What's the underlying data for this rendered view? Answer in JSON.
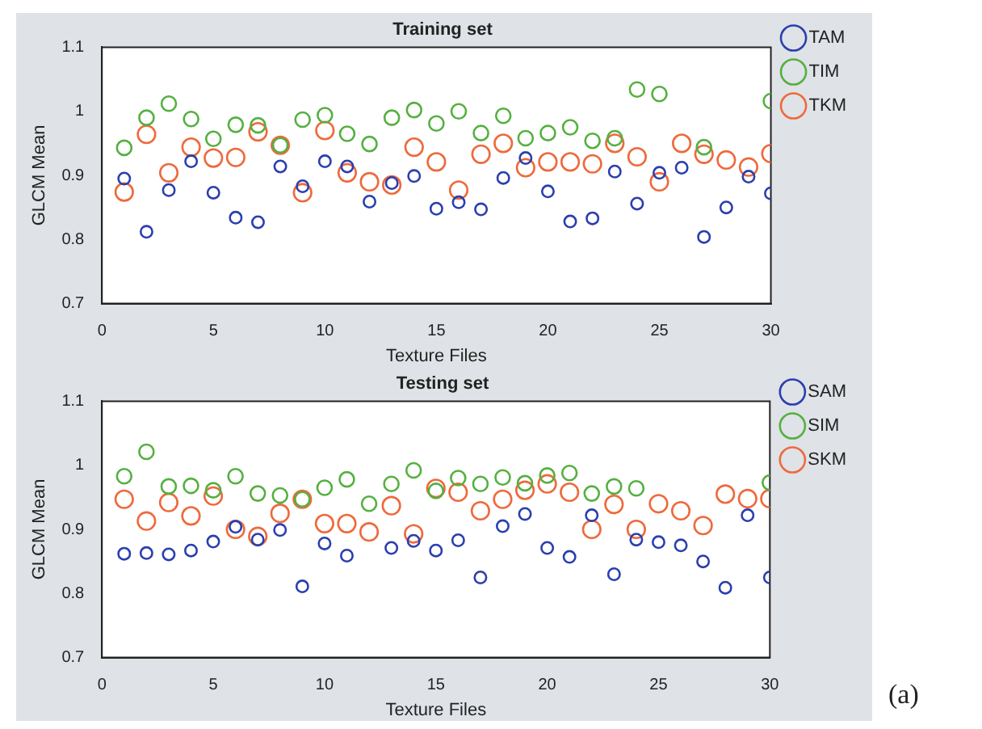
{
  "chart_data": [
    {
      "type": "scatter",
      "title": "Training set",
      "xlabel": "Texture Files",
      "ylabel": "GLCM Mean",
      "xlim": [
        0,
        30
      ],
      "ylim": [
        0.7,
        1.1
      ],
      "xticks": [
        0,
        5,
        10,
        15,
        20,
        25,
        30
      ],
      "yticks": [
        0.7,
        0.8,
        0.9,
        1,
        1.1
      ],
      "marker": "circle",
      "legend": "top right",
      "grid": false,
      "x": [
        1,
        2,
        3,
        4,
        5,
        6,
        7,
        8,
        9,
        10,
        11,
        12,
        13,
        14,
        15,
        16,
        17,
        18,
        19,
        20,
        21,
        22,
        23,
        24,
        25,
        26,
        27,
        28,
        29,
        30
      ],
      "series": [
        {
          "name": "TAM",
          "color": "#2b3fae",
          "values": [
            0.895,
            0.812,
            0.877,
            0.922,
            0.873,
            0.834,
            0.827,
            0.914,
            0.883,
            0.922,
            0.914,
            0.859,
            0.888,
            0.899,
            0.848,
            0.858,
            0.847,
            0.896,
            0.927,
            0.875,
            0.828,
            0.833,
            0.906,
            0.856,
            0.904,
            0.912,
            0.804,
            0.85,
            0.898,
            0.872
          ]
        },
        {
          "name": "TIM",
          "color": "#55b040",
          "values": [
            0.943,
            0.99,
            1.012,
            0.988,
            0.957,
            0.979,
            0.978,
            0.947,
            0.987,
            0.994,
            0.965,
            0.949,
            0.99,
            1.002,
            0.981,
            1.0,
            0.966,
            0.993,
            0.958,
            0.966,
            0.975,
            0.954,
            0.958,
            1.034,
            1.027,
            null,
            0.944,
            null,
            null,
            1.016
          ]
        },
        {
          "name": "TKM",
          "color": "#ee6a3c",
          "values": [
            0.874,
            0.964,
            0.904,
            0.944,
            0.927,
            0.928,
            0.968,
            0.947,
            0.873,
            0.97,
            0.904,
            0.89,
            0.885,
            0.944,
            0.921,
            0.877,
            0.933,
            0.95,
            0.912,
            0.921,
            0.921,
            0.918,
            0.95,
            0.929,
            0.89,
            0.95,
            0.933,
            0.924,
            0.913,
            0.934
          ]
        }
      ]
    },
    {
      "type": "scatter",
      "title": "Testing set",
      "xlabel": "Texture Files",
      "ylabel": "GLCM Mean",
      "xlim": [
        0,
        30
      ],
      "ylim": [
        0.7,
        1.1
      ],
      "xticks": [
        0,
        5,
        10,
        15,
        20,
        25,
        30
      ],
      "yticks": [
        0.7,
        0.8,
        0.9,
        1,
        1.1
      ],
      "marker": "circle",
      "legend": "top right",
      "grid": false,
      "annotations": [
        "(a)"
      ],
      "x": [
        1,
        2,
        3,
        4,
        5,
        6,
        7,
        8,
        9,
        10,
        11,
        12,
        13,
        14,
        15,
        16,
        17,
        18,
        19,
        20,
        21,
        22,
        23,
        24,
        25,
        26,
        27,
        28,
        29,
        30
      ],
      "series": [
        {
          "name": "SAM",
          "color": "#2b3fae",
          "values": [
            0.862,
            0.863,
            0.861,
            0.867,
            0.881,
            0.904,
            0.884,
            0.899,
            0.811,
            0.878,
            0.859,
            null,
            0.871,
            0.882,
            0.867,
            0.883,
            0.825,
            0.905,
            0.924,
            0.871,
            0.857,
            0.922,
            0.83,
            0.884,
            0.88,
            0.875,
            0.85,
            0.809,
            0.922,
            0.825
          ]
        },
        {
          "name": "SIM",
          "color": "#55b040",
          "values": [
            0.983,
            1.021,
            0.967,
            0.968,
            0.961,
            0.983,
            0.956,
            0.953,
            0.947,
            0.965,
            0.978,
            0.94,
            0.971,
            0.992,
            0.96,
            0.98,
            0.971,
            0.981,
            0.972,
            0.984,
            0.988,
            0.956,
            0.967,
            0.964,
            null,
            null,
            null,
            null,
            null,
            0.973
          ]
        },
        {
          "name": "SKM",
          "color": "#ee6a3c",
          "values": [
            0.947,
            0.913,
            0.942,
            0.921,
            0.952,
            0.9,
            0.889,
            0.925,
            0.947,
            0.909,
            0.909,
            0.896,
            0.937,
            0.893,
            0.964,
            0.958,
            0.929,
            0.947,
            0.961,
            0.971,
            0.958,
            0.9,
            0.939,
            0.9,
            0.94,
            0.929,
            0.906,
            0.955,
            0.948,
            0.948
          ]
        }
      ]
    }
  ]
}
